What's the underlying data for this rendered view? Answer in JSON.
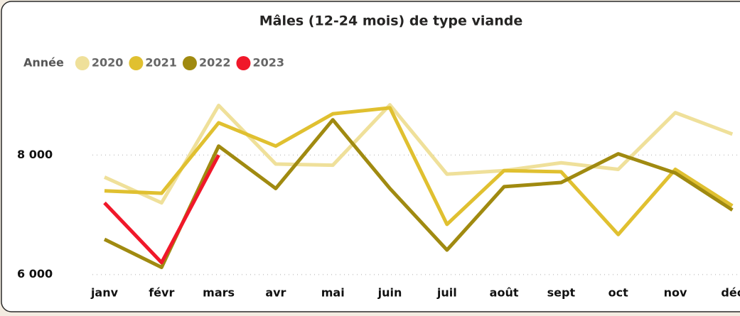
{
  "chart_data": {
    "type": "line",
    "title": "Mâles (12-24 mois) de type viande",
    "legend_title": "Année",
    "legend": "top-left",
    "grid": true,
    "categories": [
      "janv",
      "févr",
      "mars",
      "avr",
      "mai",
      "juin",
      "juil",
      "août",
      "sept",
      "oct",
      "nov",
      "déc"
    ],
    "series": [
      {
        "name": "2020",
        "color": "#efe09a",
        "values": [
          7630,
          7200,
          8830,
          7850,
          7830,
          8840,
          7680,
          7740,
          7870,
          7760,
          8710,
          8350
        ]
      },
      {
        "name": "2021",
        "color": "#e0c030",
        "values": [
          7400,
          7360,
          8540,
          8150,
          8690,
          8790,
          6840,
          7740,
          7720,
          6670,
          7760,
          7150
        ]
      },
      {
        "name": "2022",
        "color": "#a08a10",
        "values": [
          6590,
          6120,
          8150,
          7440,
          8590,
          7440,
          6410,
          7470,
          7540,
          8020,
          7700,
          7080
        ]
      },
      {
        "name": "2023",
        "color": "#f0182a",
        "values": [
          7200,
          6200,
          8000,
          null,
          null,
          null,
          null,
          null,
          null,
          null,
          null,
          null
        ]
      }
    ],
    "ylim": [
      5900,
      9050
    ],
    "yticks": [
      {
        "value": 6000,
        "label": "6 000"
      },
      {
        "value": 8000,
        "label": "8 000"
      }
    ]
  }
}
